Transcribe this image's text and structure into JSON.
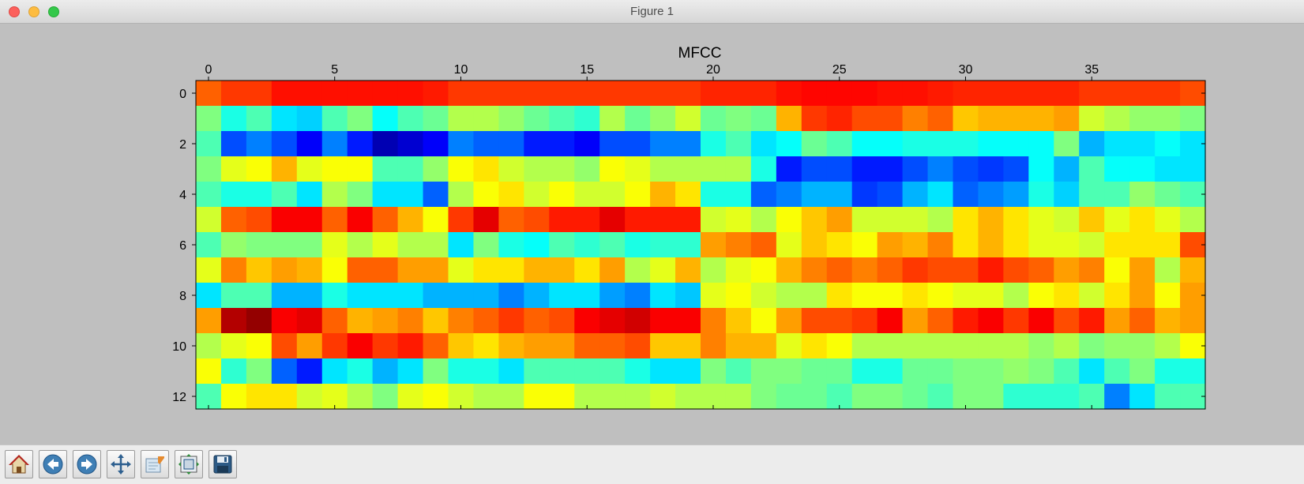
{
  "window": {
    "title": "Figure 1"
  },
  "toolbar": {
    "buttons": [
      {
        "name": "home-button",
        "icon": "home-icon"
      },
      {
        "name": "back-button",
        "icon": "back-arrow-icon"
      },
      {
        "name": "forward-button",
        "icon": "forward-arrow-icon"
      },
      {
        "name": "pan-button",
        "icon": "pan-arrows-icon"
      },
      {
        "name": "zoom-button",
        "icon": "zoom-rect-icon"
      },
      {
        "name": "subplots-button",
        "icon": "subplots-icon"
      },
      {
        "name": "save-button",
        "icon": "save-icon"
      }
    ]
  },
  "chart_data": {
    "type": "heatmap",
    "title": "MFCC",
    "colormap": "jet",
    "x_ticks": [
      0,
      5,
      10,
      15,
      20,
      25,
      30,
      35
    ],
    "y_ticks": [
      0,
      2,
      4,
      6,
      8,
      10,
      12
    ],
    "xlim": [
      -0.5,
      39.5
    ],
    "ylim": [
      12.5,
      -0.5
    ],
    "x_axis_position": "top",
    "grid": false,
    "value_scale": "normalized colormap position 0 (dark blue) to 1 (dark red)",
    "rows": [
      [
        0.78,
        0.82,
        0.82,
        0.86,
        0.86,
        0.86,
        0.86,
        0.86,
        0.86,
        0.85,
        0.82,
        0.82,
        0.82,
        0.82,
        0.82,
        0.82,
        0.82,
        0.82,
        0.82,
        0.82,
        0.84,
        0.84,
        0.84,
        0.86,
        0.87,
        0.87,
        0.87,
        0.86,
        0.86,
        0.85,
        0.84,
        0.84,
        0.84,
        0.84,
        0.84,
        0.82,
        0.82,
        0.82,
        0.82,
        0.8
      ],
      [
        0.5,
        0.4,
        0.45,
        0.35,
        0.33,
        0.45,
        0.5,
        0.38,
        0.45,
        0.48,
        0.55,
        0.55,
        0.52,
        0.48,
        0.45,
        0.42,
        0.55,
        0.48,
        0.52,
        0.58,
        0.48,
        0.5,
        0.48,
        0.7,
        0.82,
        0.84,
        0.8,
        0.8,
        0.75,
        0.78,
        0.68,
        0.7,
        0.7,
        0.7,
        0.72,
        0.58,
        0.55,
        0.52,
        0.52,
        0.5
      ],
      [
        0.45,
        0.2,
        0.25,
        0.2,
        0.12,
        0.25,
        0.15,
        0.05,
        0.08,
        0.12,
        0.25,
        0.22,
        0.22,
        0.15,
        0.15,
        0.12,
        0.2,
        0.2,
        0.25,
        0.25,
        0.4,
        0.45,
        0.35,
        0.38,
        0.48,
        0.45,
        0.38,
        0.38,
        0.4,
        0.4,
        0.4,
        0.38,
        0.38,
        0.38,
        0.5,
        0.3,
        0.35,
        0.35,
        0.38,
        0.35
      ],
      [
        0.5,
        0.6,
        0.62,
        0.7,
        0.6,
        0.62,
        0.62,
        0.45,
        0.45,
        0.52,
        0.62,
        0.65,
        0.58,
        0.55,
        0.55,
        0.52,
        0.62,
        0.6,
        0.55,
        0.55,
        0.55,
        0.55,
        0.4,
        0.15,
        0.2,
        0.2,
        0.15,
        0.15,
        0.2,
        0.25,
        0.2,
        0.18,
        0.2,
        0.38,
        0.3,
        0.45,
        0.38,
        0.38,
        0.35,
        0.35
      ],
      [
        0.45,
        0.4,
        0.4,
        0.45,
        0.35,
        0.55,
        0.5,
        0.35,
        0.35,
        0.22,
        0.55,
        0.62,
        0.65,
        0.58,
        0.62,
        0.58,
        0.58,
        0.62,
        0.7,
        0.65,
        0.4,
        0.4,
        0.22,
        0.25,
        0.3,
        0.3,
        0.18,
        0.2,
        0.3,
        0.35,
        0.22,
        0.25,
        0.28,
        0.4,
        0.33,
        0.45,
        0.45,
        0.52,
        0.48,
        0.45
      ],
      [
        0.58,
        0.78,
        0.8,
        0.88,
        0.88,
        0.78,
        0.88,
        0.78,
        0.7,
        0.62,
        0.82,
        0.9,
        0.78,
        0.8,
        0.85,
        0.85,
        0.9,
        0.85,
        0.85,
        0.85,
        0.58,
        0.6,
        0.55,
        0.62,
        0.68,
        0.72,
        0.58,
        0.58,
        0.58,
        0.55,
        0.65,
        0.7,
        0.65,
        0.6,
        0.58,
        0.68,
        0.6,
        0.65,
        0.6,
        0.55
      ],
      [
        0.45,
        0.52,
        0.5,
        0.5,
        0.5,
        0.6,
        0.55,
        0.6,
        0.55,
        0.55,
        0.35,
        0.5,
        0.4,
        0.38,
        0.45,
        0.42,
        0.45,
        0.4,
        0.42,
        0.42,
        0.72,
        0.75,
        0.78,
        0.6,
        0.68,
        0.65,
        0.62,
        0.72,
        0.7,
        0.75,
        0.65,
        0.7,
        0.65,
        0.6,
        0.6,
        0.58,
        0.65,
        0.65,
        0.65,
        0.8
      ],
      [
        0.6,
        0.75,
        0.68,
        0.72,
        0.7,
        0.62,
        0.78,
        0.78,
        0.72,
        0.72,
        0.6,
        0.65,
        0.65,
        0.7,
        0.7,
        0.65,
        0.72,
        0.55,
        0.6,
        0.7,
        0.55,
        0.6,
        0.62,
        0.7,
        0.75,
        0.78,
        0.75,
        0.78,
        0.82,
        0.8,
        0.8,
        0.85,
        0.8,
        0.78,
        0.72,
        0.75,
        0.62,
        0.72,
        0.55,
        0.7
      ],
      [
        0.35,
        0.45,
        0.45,
        0.3,
        0.3,
        0.4,
        0.35,
        0.35,
        0.35,
        0.3,
        0.3,
        0.3,
        0.25,
        0.3,
        0.35,
        0.35,
        0.28,
        0.25,
        0.35,
        0.32,
        0.6,
        0.62,
        0.58,
        0.55,
        0.55,
        0.65,
        0.62,
        0.62,
        0.65,
        0.62,
        0.6,
        0.6,
        0.55,
        0.62,
        0.65,
        0.58,
        0.65,
        0.72,
        0.62,
        0.72
      ],
      [
        0.72,
        0.95,
        0.98,
        0.88,
        0.9,
        0.78,
        0.7,
        0.72,
        0.75,
        0.68,
        0.75,
        0.78,
        0.82,
        0.78,
        0.8,
        0.88,
        0.9,
        0.92,
        0.88,
        0.88,
        0.75,
        0.68,
        0.62,
        0.72,
        0.8,
        0.8,
        0.82,
        0.88,
        0.72,
        0.78,
        0.85,
        0.88,
        0.82,
        0.88,
        0.8,
        0.85,
        0.72,
        0.78,
        0.7,
        0.72
      ],
      [
        0.55,
        0.6,
        0.62,
        0.8,
        0.72,
        0.82,
        0.88,
        0.82,
        0.85,
        0.78,
        0.68,
        0.65,
        0.7,
        0.72,
        0.72,
        0.78,
        0.78,
        0.8,
        0.68,
        0.68,
        0.75,
        0.7,
        0.7,
        0.6,
        0.65,
        0.62,
        0.55,
        0.55,
        0.55,
        0.55,
        0.55,
        0.55,
        0.55,
        0.52,
        0.55,
        0.5,
        0.52,
        0.52,
        0.55,
        0.62
      ],
      [
        0.62,
        0.42,
        0.5,
        0.22,
        0.15,
        0.35,
        0.4,
        0.3,
        0.35,
        0.5,
        0.4,
        0.4,
        0.35,
        0.45,
        0.45,
        0.45,
        0.45,
        0.4,
        0.35,
        0.35,
        0.5,
        0.45,
        0.5,
        0.5,
        0.48,
        0.48,
        0.4,
        0.4,
        0.48,
        0.48,
        0.5,
        0.5,
        0.52,
        0.5,
        0.45,
        0.35,
        0.45,
        0.5,
        0.4,
        0.4
      ],
      [
        0.45,
        0.62,
        0.65,
        0.65,
        0.58,
        0.6,
        0.55,
        0.5,
        0.6,
        0.62,
        0.58,
        0.55,
        0.55,
        0.62,
        0.62,
        0.55,
        0.55,
        0.55,
        0.58,
        0.55,
        0.55,
        0.55,
        0.5,
        0.48,
        0.48,
        0.45,
        0.5,
        0.5,
        0.48,
        0.45,
        0.5,
        0.5,
        0.42,
        0.42,
        0.42,
        0.45,
        0.25,
        0.35,
        0.45,
        0.45
      ]
    ]
  }
}
